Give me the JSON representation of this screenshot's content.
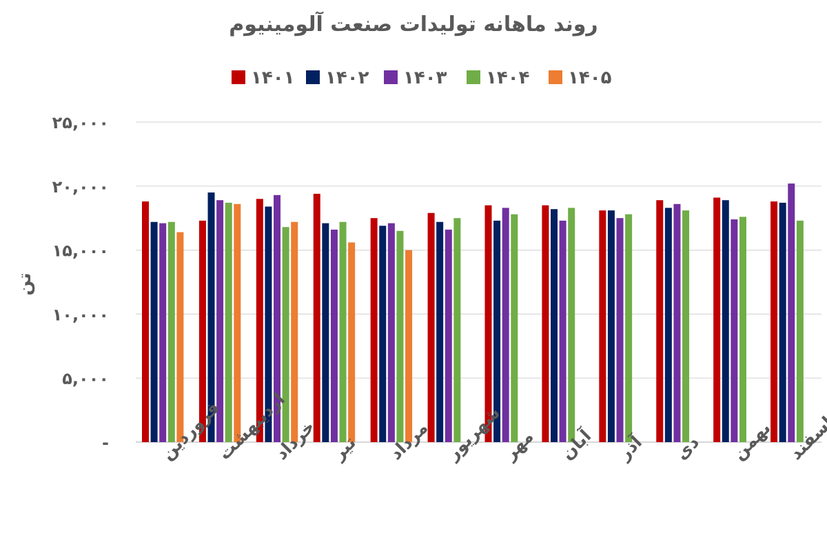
{
  "chart_data": {
    "type": "bar",
    "title": "روند ماهانه تولیدات صنعت آلومینیوم",
    "xlabel": "",
    "ylabel": "تن",
    "ylim": [
      0,
      25000
    ],
    "yticks": [
      0,
      5000,
      10000,
      15000,
      20000,
      25000
    ],
    "ytick_labels": [
      "-",
      "۵,۰۰۰",
      "۱۰,۰۰۰",
      "۱۵,۰۰۰",
      "۲۰,۰۰۰",
      "۲۵,۰۰۰"
    ],
    "grid": true,
    "legend_position": "top",
    "categories": [
      "فروردین",
      "اردیبهشت",
      "خرداد",
      "تیر",
      "مرداد",
      "شهریور",
      "مهر",
      "آبان",
      "آذر",
      "دی",
      "بهمن",
      "اسفند"
    ],
    "series": [
      {
        "name": "۱۴۰۱",
        "color": "#C00000",
        "values": [
          18800,
          17300,
          19000,
          19400,
          17500,
          17900,
          18500,
          18500,
          18100,
          18900,
          19100,
          18800
        ]
      },
      {
        "name": "۱۴۰۲",
        "color": "#002060",
        "values": [
          17200,
          19500,
          18400,
          17100,
          16900,
          17200,
          17300,
          18200,
          18100,
          18300,
          18900,
          18700
        ]
      },
      {
        "name": "۱۴۰۳",
        "color": "#7030A0",
        "values": [
          17100,
          18900,
          19300,
          16600,
          17100,
          16600,
          18300,
          17300,
          17500,
          18600,
          17400,
          20200
        ]
      },
      {
        "name": "۱۴۰۴",
        "color": "#70AD47",
        "values": [
          17200,
          18700,
          16800,
          17200,
          16500,
          17500,
          17800,
          18300,
          17800,
          18100,
          17600,
          17300
        ]
      },
      {
        "name": "۱۴۰۵",
        "color": "#ED7D31",
        "values": [
          16400,
          18600,
          17200,
          15600,
          15000,
          null,
          null,
          null,
          null,
          null,
          null,
          null
        ]
      }
    ]
  }
}
